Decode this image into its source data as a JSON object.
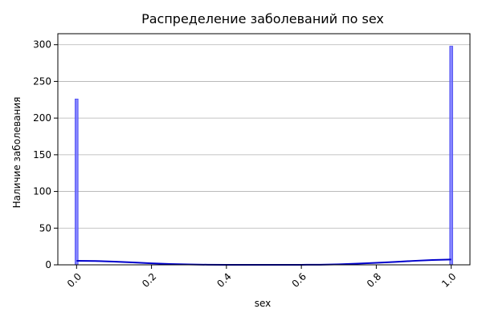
{
  "chart_data": {
    "type": "bar",
    "title": "Распределение заболеваний по sex",
    "xlabel": "sex",
    "ylabel": "Наличие заболевания",
    "xlim": [
      -0.05,
      1.05
    ],
    "ylim": [
      0,
      315
    ],
    "x_ticks": [
      0.0,
      0.2,
      0.4,
      0.6,
      0.8,
      1.0
    ],
    "x_tick_labels": [
      "0.0",
      "0.2",
      "0.4",
      "0.6",
      "0.8",
      "1.0"
    ],
    "y_ticks": [
      0,
      50,
      100,
      150,
      200,
      250,
      300
    ],
    "y_tick_labels": [
      "0",
      "50",
      "100",
      "150",
      "200",
      "250",
      "300"
    ],
    "grid": "y",
    "bars": [
      {
        "x": 0.0,
        "value": 226
      },
      {
        "x": 1.0,
        "value": 298
      }
    ],
    "bar_width": 0.008,
    "bar_color": "#7070ff",
    "bar_edge_color": "#4a4af0",
    "kde_line": {
      "color": "#0000cc",
      "x": [
        0.0,
        0.05,
        0.1,
        0.15,
        0.2,
        0.25,
        0.3,
        0.35,
        0.4,
        0.45,
        0.5,
        0.55,
        0.6,
        0.65,
        0.7,
        0.75,
        0.8,
        0.85,
        0.9,
        0.95,
        1.0
      ],
      "y": [
        5.5,
        5.2,
        4.4,
        3.3,
        2.1,
        1.1,
        0.5,
        0.15,
        0.03,
        0.0,
        0.0,
        0.0,
        0.05,
        0.2,
        0.7,
        1.6,
        2.7,
        4.0,
        5.4,
        6.6,
        7.2
      ]
    }
  }
}
